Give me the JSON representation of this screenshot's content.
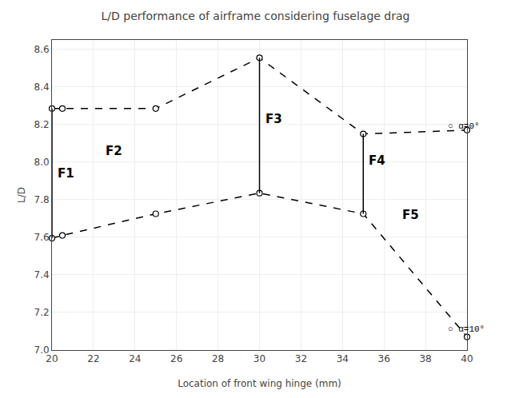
{
  "chart_data": {
    "type": "line",
    "title": "L/D performance of airframe considering fuselage drag",
    "xlabel": "Location of front wing hinge (mm)",
    "ylabel": "L/D",
    "xlim": [
      20,
      40
    ],
    "ylim": [
      7.0,
      8.65
    ],
    "xticks": [
      20,
      22,
      24,
      26,
      28,
      30,
      32,
      34,
      36,
      38,
      40
    ],
    "yticks": [
      7.0,
      7.2,
      7.4,
      7.6,
      7.8,
      8.0,
      8.2,
      8.4,
      8.6
    ],
    "grid": true,
    "x": [
      20,
      20.5,
      25,
      30,
      35,
      40
    ],
    "series": [
      {
        "color": "#000000",
        "line_style": "dashed",
        "marker": "circle",
        "values": [
          8.285,
          8.285,
          8.285,
          8.555,
          8.15,
          8.17
        ]
      },
      {
        "color": "#000000",
        "line_style": "dashed",
        "marker": "circle",
        "values": [
          7.595,
          7.61,
          7.725,
          7.835,
          7.725,
          7.07
        ]
      }
    ],
    "annotations": [
      {
        "text": "○ α=0°",
        "x": 39.0,
        "y": 8.19
      },
      {
        "text": "○ α=10°",
        "x": 39.0,
        "y": 7.11
      }
    ],
    "vlines": [
      {
        "x": 20.0,
        "ymin": 7.595,
        "ymax": 8.285
      },
      {
        "x": 30.0,
        "ymin": 7.835,
        "ymax": 8.555
      },
      {
        "x": 35.0,
        "ymin": 7.725,
        "ymax": 8.15
      }
    ],
    "vline_color": "#000000",
    "region_labels": [
      {
        "text": "F1",
        "x": 20.2,
        "y": 7.94
      },
      {
        "text": "F2",
        "x": 22.5,
        "y": 8.06
      },
      {
        "text": "F3",
        "x": 30.2,
        "y": 8.23
      },
      {
        "text": "F4",
        "x": 35.2,
        "y": 8.01
      },
      {
        "text": "F5",
        "x": 36.8,
        "y": 7.72
      }
    ]
  }
}
